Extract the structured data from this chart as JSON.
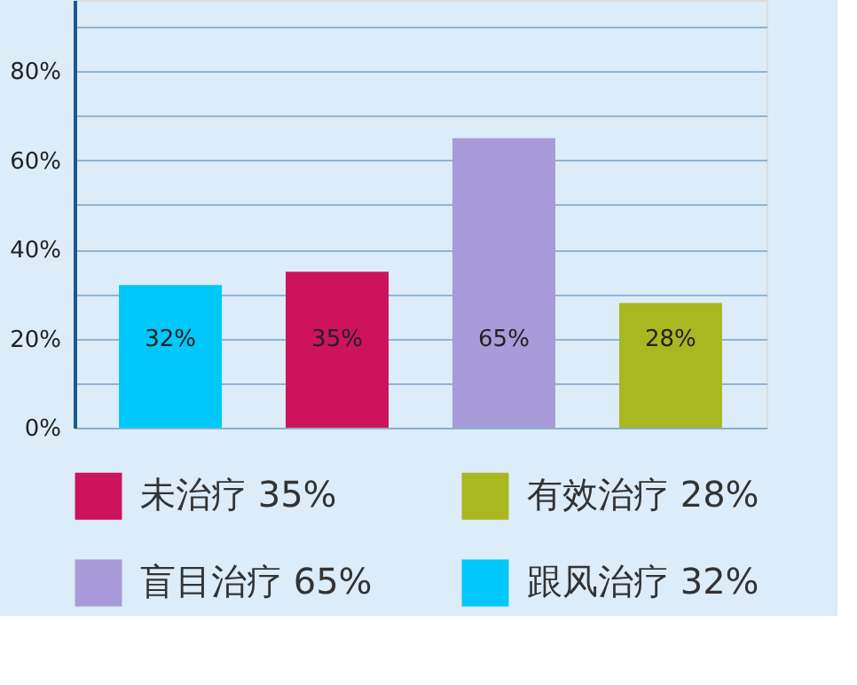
{
  "chart_data": {
    "type": "bar",
    "categories": [
      null,
      null,
      null,
      null
    ],
    "series": [
      {
        "name": "未治疗 35%",
        "color": "#cc135c",
        "values": [
          null,
          35,
          null,
          null
        ],
        "value_labels": [
          null,
          "35%",
          null,
          null
        ]
      },
      {
        "name": "有效治疗 28%",
        "color": "#a9b720",
        "values": [
          null,
          null,
          null,
          28
        ],
        "value_labels": [
          null,
          null,
          null,
          "28%"
        ]
      },
      {
        "name": "盲目治疗 65%",
        "color": "#a99bd9",
        "values": [
          null,
          null,
          65,
          null
        ],
        "value_labels": [
          null,
          null,
          "65%",
          null
        ]
      },
      {
        "name": "跟风治疗 32%",
        "color": "#00c8f8",
        "values": [
          32,
          null,
          null,
          null
        ],
        "value_labels": [
          "32%",
          null,
          null,
          null
        ]
      }
    ],
    "ylim": [
      0,
      96
    ],
    "yticks": [
      {
        "value": 0,
        "label": "0%"
      },
      {
        "value": 10,
        "label": null
      },
      {
        "value": 20,
        "label": "20%"
      },
      {
        "value": 30,
        "label": null
      },
      {
        "value": 40,
        "label": "40%"
      },
      {
        "value": 50,
        "label": null
      },
      {
        "value": 60,
        "label": "60%"
      },
      {
        "value": 70,
        "label": null
      },
      {
        "value": 80,
        "label": "80%"
      },
      {
        "value": 90,
        "label": null
      }
    ],
    "grid": "y",
    "legend": "bottom",
    "tick_labels": "y"
  }
}
